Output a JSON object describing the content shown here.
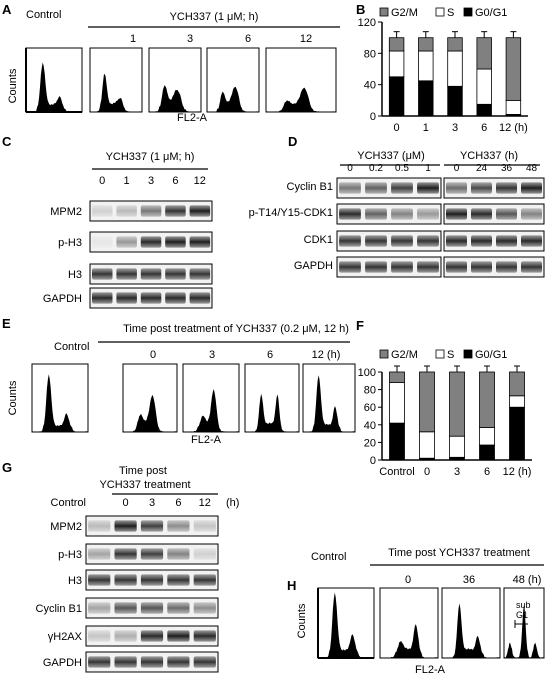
{
  "panels": {
    "A": {
      "letter": "A",
      "control_label": "Control",
      "header": "YCH337 (1 μM; h)",
      "timepoints": [
        "1",
        "3",
        "6",
        "12"
      ],
      "ylabel": "Counts",
      "xlabel": "FL2-A"
    },
    "B": {
      "letter": "B"
    },
    "C": {
      "letter": "C",
      "header": "YCH337 (1 μM; h)",
      "lanes": [
        "0",
        "1",
        "3",
        "6",
        "12"
      ],
      "rows": [
        "MPM2",
        "p-H3",
        "H3",
        "GAPDH"
      ]
    },
    "D": {
      "letter": "D",
      "header_left": "YCH337 (μM)",
      "header_right": "YCH337 (h)",
      "lanes_left": [
        "0",
        "0.2",
        "0.5",
        "1"
      ],
      "lanes_right": [
        "0",
        "24",
        "36",
        "48"
      ],
      "rows": [
        "Cyclin B1",
        "p-T14/Y15-CDK1",
        "CDK1",
        "GAPDH"
      ]
    },
    "E": {
      "letter": "E",
      "control_label": "Control",
      "header": "Time post treatment of YCH337 (0.2 μM, 12 h)",
      "timepoints": [
        "0",
        "3",
        "6",
        "12 (h)"
      ],
      "ylabel": "Counts",
      "xlabel": "FL2-A"
    },
    "F": {
      "letter": "F"
    },
    "G": {
      "letter": "G",
      "header_line1": "Time post",
      "header_line2": "YCH337 treatment",
      "lane_control": "Control",
      "lanes": [
        "0",
        "3",
        "6",
        "12"
      ],
      "unit": "(h)",
      "rows": [
        "MPM2",
        "p-H3",
        "H3",
        "Cyclin B1",
        "γH2AX",
        "GAPDH"
      ]
    },
    "H": {
      "letter": "H",
      "control_label": "Control",
      "header": "Time post YCH337 treatment",
      "timepoints": [
        "0",
        "36",
        "48 (h)"
      ],
      "subg1_label_1": "sub",
      "subg1_label_2": "G1",
      "ylabel": "Counts",
      "xlabel": "FL2-A"
    }
  },
  "chart_data": [
    {
      "panel": "B",
      "type": "bar",
      "stacked": true,
      "categories": [
        "0",
        "1",
        "3",
        "6",
        "12 (h)"
      ],
      "series": [
        {
          "name": "G0/G1",
          "values": [
            50,
            45,
            38,
            15,
            2
          ]
        },
        {
          "name": "S",
          "values": [
            33,
            38,
            45,
            45,
            18
          ]
        },
        {
          "name": "G2/M",
          "values": [
            17,
            17,
            17,
            40,
            80
          ]
        }
      ],
      "ylim": [
        0,
        120
      ],
      "yticks": [
        0,
        40,
        80,
        120
      ],
      "colors": {
        "G2/M": "#808080",
        "S": "#ffffff",
        "G0/G1": "#000000"
      },
      "legend": "top"
    },
    {
      "panel": "F",
      "type": "bar",
      "stacked": true,
      "categories": [
        "Control",
        "0",
        "3",
        "6",
        "12 (h)"
      ],
      "series": [
        {
          "name": "G0/G1",
          "values": [
            42,
            2,
            3,
            17,
            60
          ]
        },
        {
          "name": "S",
          "values": [
            46,
            30,
            24,
            20,
            13
          ]
        },
        {
          "name": "G2/M",
          "values": [
            12,
            68,
            73,
            63,
            27
          ]
        }
      ],
      "ylim": [
        0,
        100
      ],
      "yticks": [
        0,
        20,
        40,
        60,
        80,
        100
      ],
      "colors": {
        "G2/M": "#808080",
        "S": "#ffffff",
        "G0/G1": "#000000"
      },
      "legend": "top"
    }
  ]
}
